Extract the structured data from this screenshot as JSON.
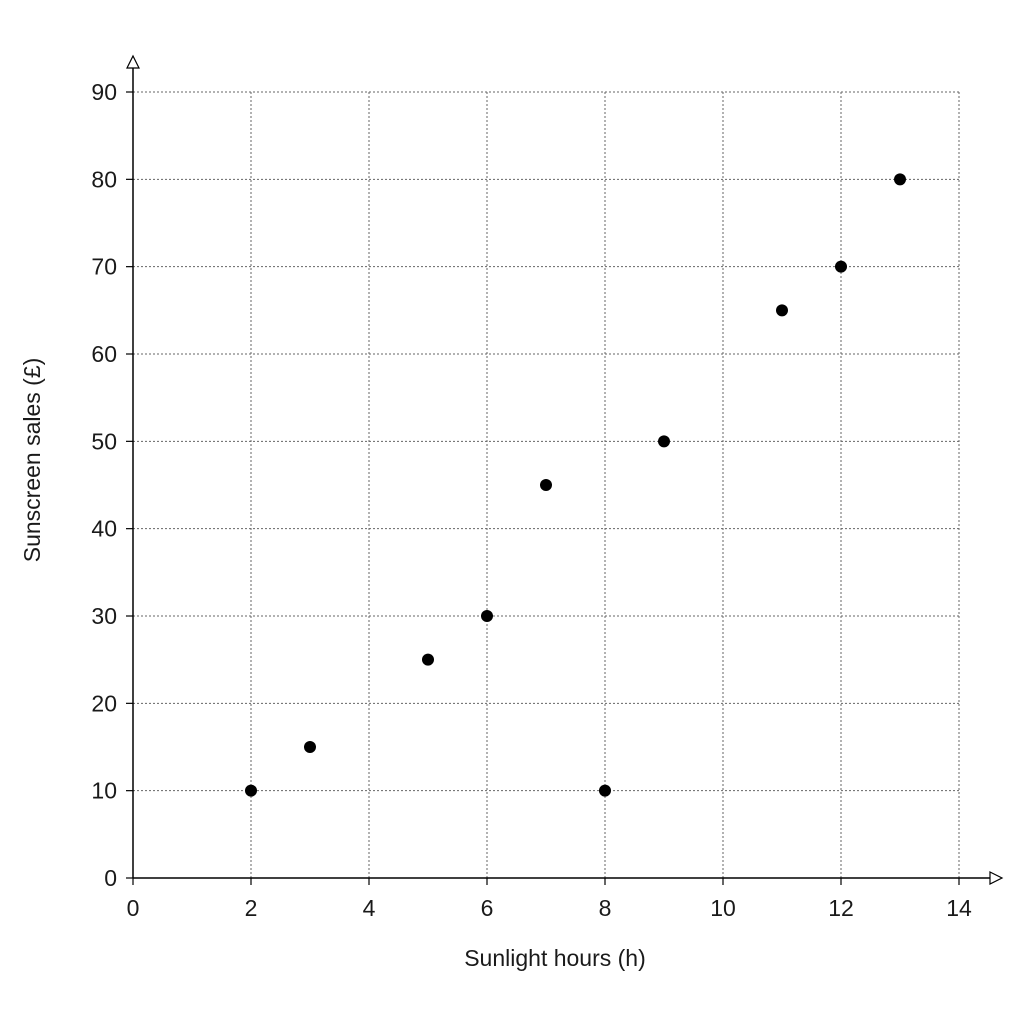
{
  "chart_data": {
    "type": "scatter",
    "xlabel": "Sunlight hours (h)",
    "ylabel": "Sunscreen sales (£)",
    "xlim": [
      0,
      14
    ],
    "ylim": [
      0,
      90
    ],
    "x_ticks": [
      0,
      2,
      4,
      6,
      8,
      10,
      12,
      14
    ],
    "y_ticks": [
      0,
      10,
      20,
      30,
      40,
      50,
      60,
      70,
      80,
      90
    ],
    "grid": true,
    "points": [
      {
        "x": 2,
        "y": 10
      },
      {
        "x": 3,
        "y": 15
      },
      {
        "x": 5,
        "y": 25
      },
      {
        "x": 6,
        "y": 30
      },
      {
        "x": 7,
        "y": 45
      },
      {
        "x": 8,
        "y": 10
      },
      {
        "x": 9,
        "y": 50
      },
      {
        "x": 11,
        "y": 65
      },
      {
        "x": 12,
        "y": 70
      },
      {
        "x": 13,
        "y": 80
      }
    ]
  }
}
